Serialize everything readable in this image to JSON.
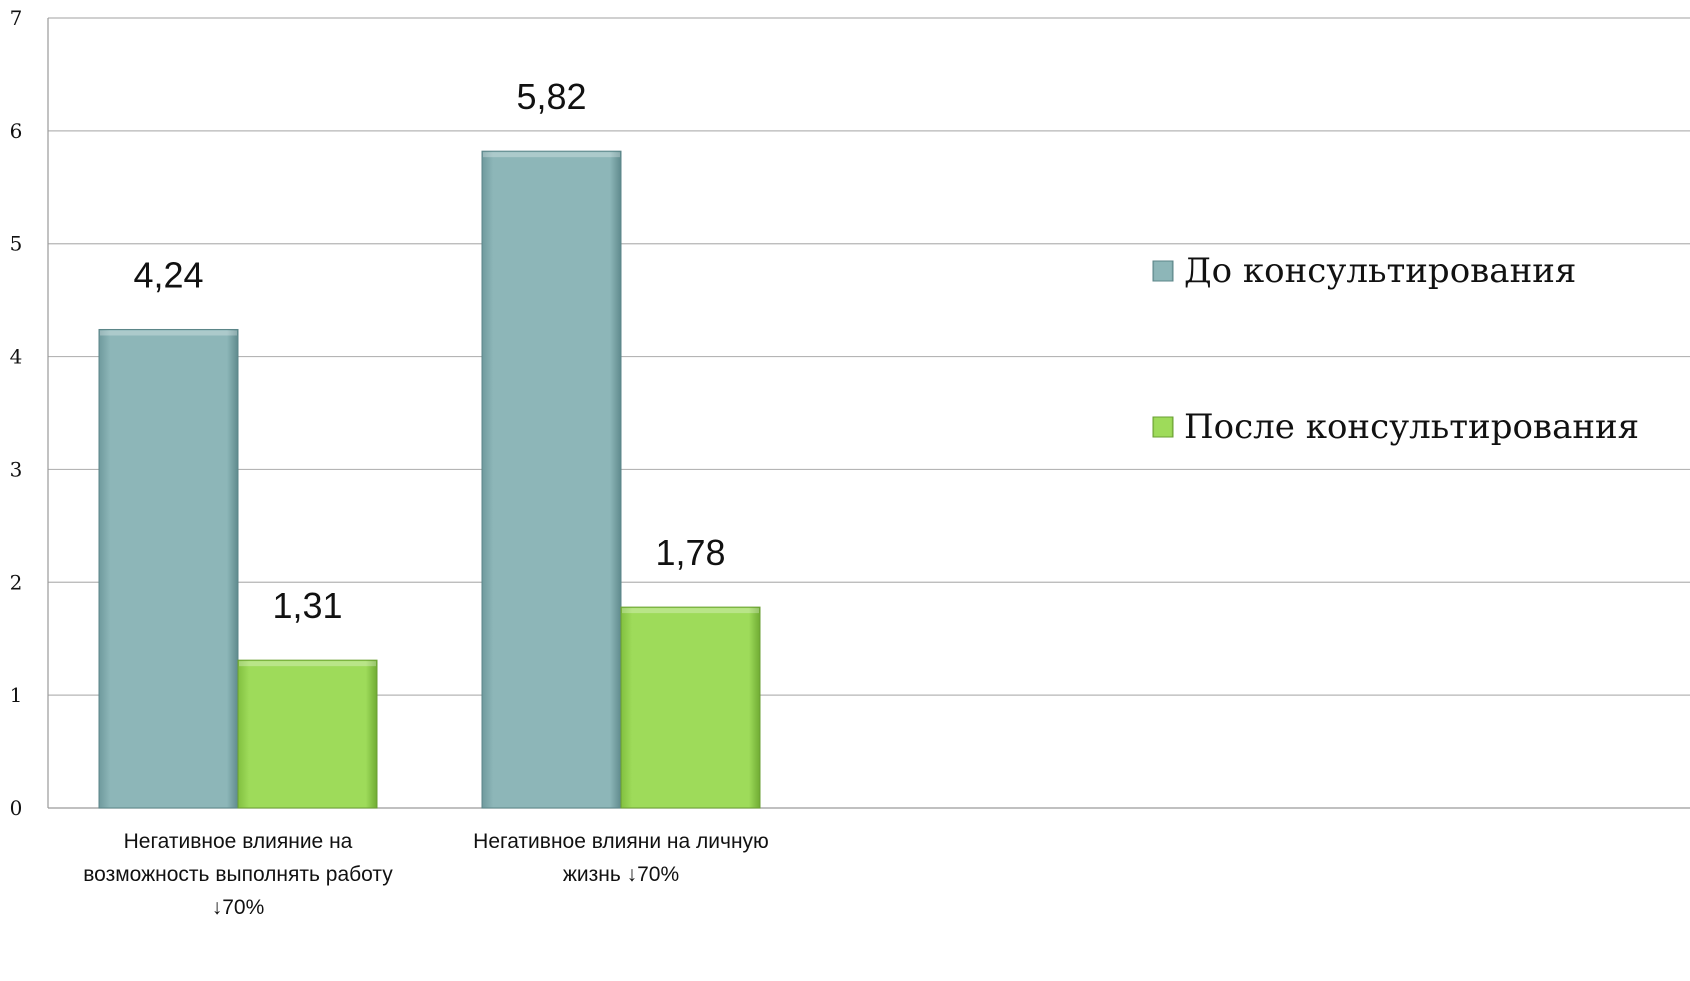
{
  "chart_data": {
    "type": "bar",
    "categories": [
      [
        "Негативное влияние на",
        "возможность выполнять работу",
        "↓70%"
      ],
      [
        "Негативное влияни на личную",
        "жизнь ↓70%"
      ]
    ],
    "series": [
      {
        "name": "До консультирования",
        "values": [
          4.24,
          5.82
        ],
        "labels": [
          "4,24",
          "5,82"
        ],
        "color": "#8db6b8"
      },
      {
        "name": "После консультирования",
        "values": [
          1.31,
          1.78
        ],
        "labels": [
          "1,31",
          "1,78"
        ],
        "color": "#9edb5a"
      }
    ],
    "ylim": [
      0,
      7
    ],
    "yticks": [
      0,
      1,
      2,
      3,
      4,
      5,
      6,
      7
    ],
    "grid": true,
    "legend_position": "right"
  }
}
